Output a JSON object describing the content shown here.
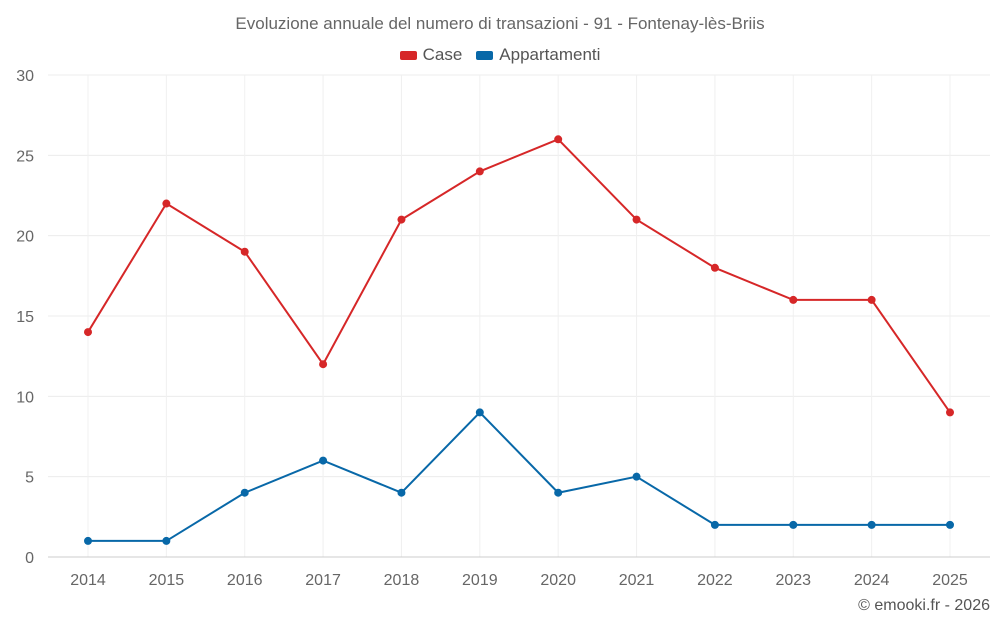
{
  "chart_data": {
    "type": "line",
    "title": "Evoluzione annuale del numero di transazioni - 91 - Fontenay-lès-Briis",
    "xlabel": "",
    "ylabel": "",
    "categories": [
      "2014",
      "2015",
      "2016",
      "2017",
      "2018",
      "2019",
      "2020",
      "2021",
      "2022",
      "2023",
      "2024",
      "2025"
    ],
    "ylim": [
      0,
      30
    ],
    "yticks": [
      0,
      5,
      10,
      15,
      20,
      25,
      30
    ],
    "grid": true,
    "legend_position": "top-center",
    "series": [
      {
        "name": "Case",
        "color": "#d62728",
        "values": [
          14,
          22,
          19,
          12,
          21,
          24,
          26,
          21,
          18,
          16,
          16,
          9
        ]
      },
      {
        "name": "Appartamenti",
        "color": "#0868a8",
        "values": [
          1,
          1,
          4,
          6,
          4,
          9,
          4,
          5,
          2,
          2,
          2,
          2
        ]
      }
    ]
  },
  "credit": "© emooki.fr - 2026"
}
